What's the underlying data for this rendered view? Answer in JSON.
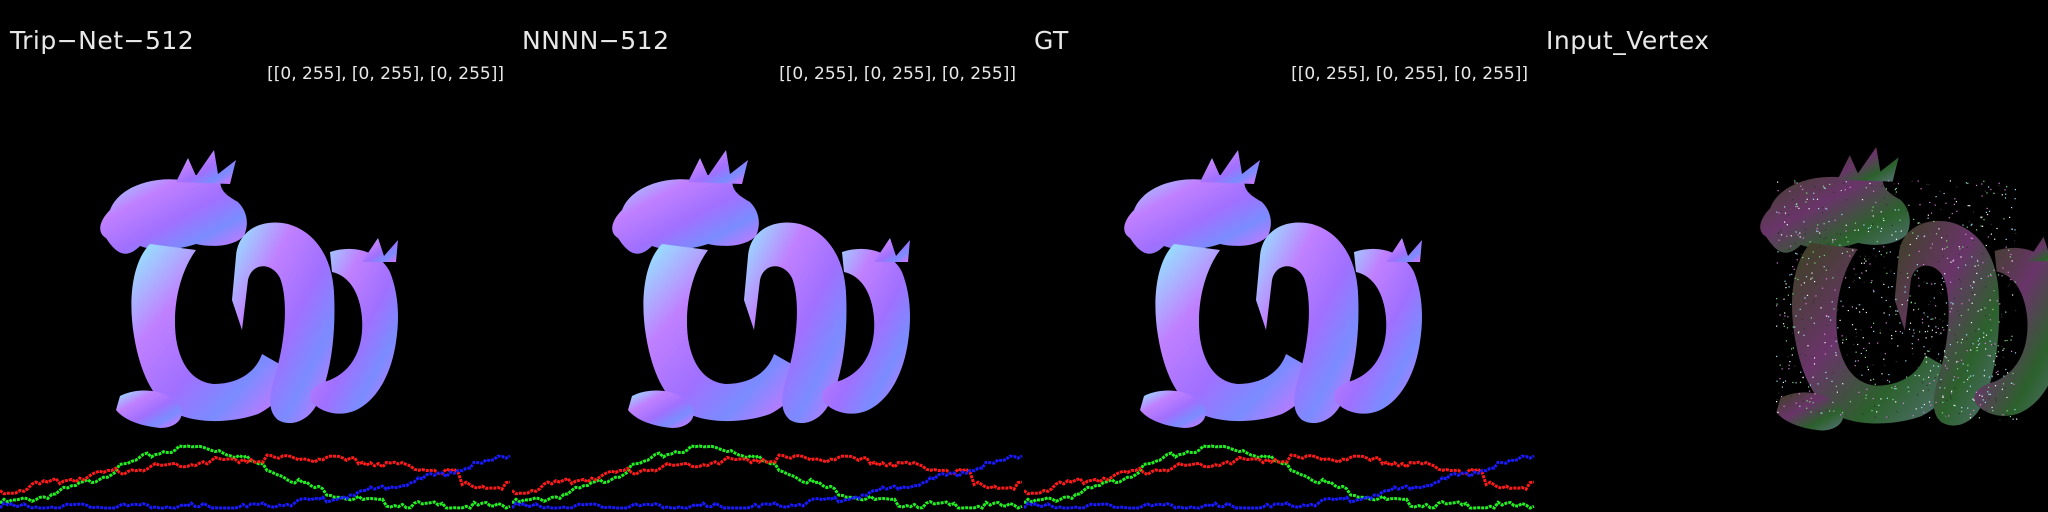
{
  "panels": [
    {
      "title": "Trip−Net−512",
      "range": "[[0, 255], [0, 255], [0, 255]]",
      "kind": "normal-map",
      "show_histogram": true
    },
    {
      "title": "NNNN−512",
      "range": "[[0, 255], [0, 255], [0, 255]]",
      "kind": "normal-map",
      "show_histogram": true
    },
    {
      "title": "GT",
      "range": "[[0, 255], [0, 255], [0, 255]]",
      "kind": "normal-map",
      "show_histogram": true
    },
    {
      "title": "Input_Vertex",
      "range": "",
      "kind": "point-cloud",
      "show_histogram": false
    }
  ],
  "colors": {
    "background": "#000000",
    "text": "#e8e8e8",
    "hist_red": "#ff1a1a",
    "hist_green": "#22ee22",
    "hist_blue": "#1a1aff"
  }
}
